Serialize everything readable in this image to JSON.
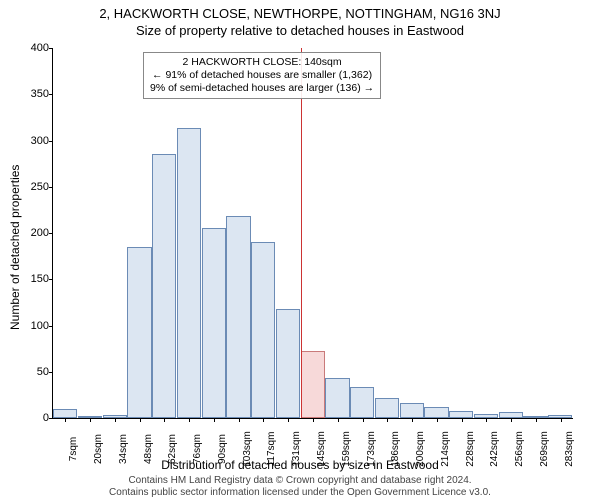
{
  "title_main": "2, HACKWORTH CLOSE, NEWTHORPE, NOTTINGHAM, NG16 3NJ",
  "title_sub": "Size of property relative to detached houses in Eastwood",
  "y_axis_label": "Number of detached properties",
  "x_axis_label": "Distribution of detached houses by size in Eastwood",
  "footer_line1": "Contains HM Land Registry data © Crown copyright and database right 2024.",
  "footer_line2": "Contains public sector information licensed under the Open Government Licence v3.0.",
  "info_box": {
    "line1": "2 HACKWORTH CLOSE: 140sqm",
    "line2": "← 91% of detached houses are smaller (1,362)",
    "line3": "9% of semi-detached houses are larger (136) →"
  },
  "chart": {
    "type": "histogram",
    "ylim": [
      0,
      400
    ],
    "ytick_step": 50,
    "x_categories": [
      "7sqm",
      "20sqm",
      "34sqm",
      "48sqm",
      "62sqm",
      "76sqm",
      "90sqm",
      "103sqm",
      "117sqm",
      "131sqm",
      "145sqm",
      "159sqm",
      "173sqm",
      "186sqm",
      "200sqm",
      "214sqm",
      "228sqm",
      "242sqm",
      "256sqm",
      "269sqm",
      "283sqm"
    ],
    "values": [
      10,
      0,
      3,
      185,
      285,
      313,
      205,
      218,
      190,
      118,
      72,
      43,
      33,
      22,
      16,
      12,
      8,
      4,
      6,
      2,
      3
    ],
    "bar_fill": "#dce6f2",
    "bar_stroke": "#6b8bb5",
    "highlight_index": 10,
    "highlight_fill": "#f7d9d9",
    "highlight_stroke": "#c97a7a",
    "marker_line_color": "#cc3333",
    "background_color": "#ffffff",
    "bar_width_ratio": 1.0,
    "title_fontsize": 13,
    "label_fontsize": 12,
    "tick_fontsize": 10,
    "info_box_font": 10.5
  }
}
